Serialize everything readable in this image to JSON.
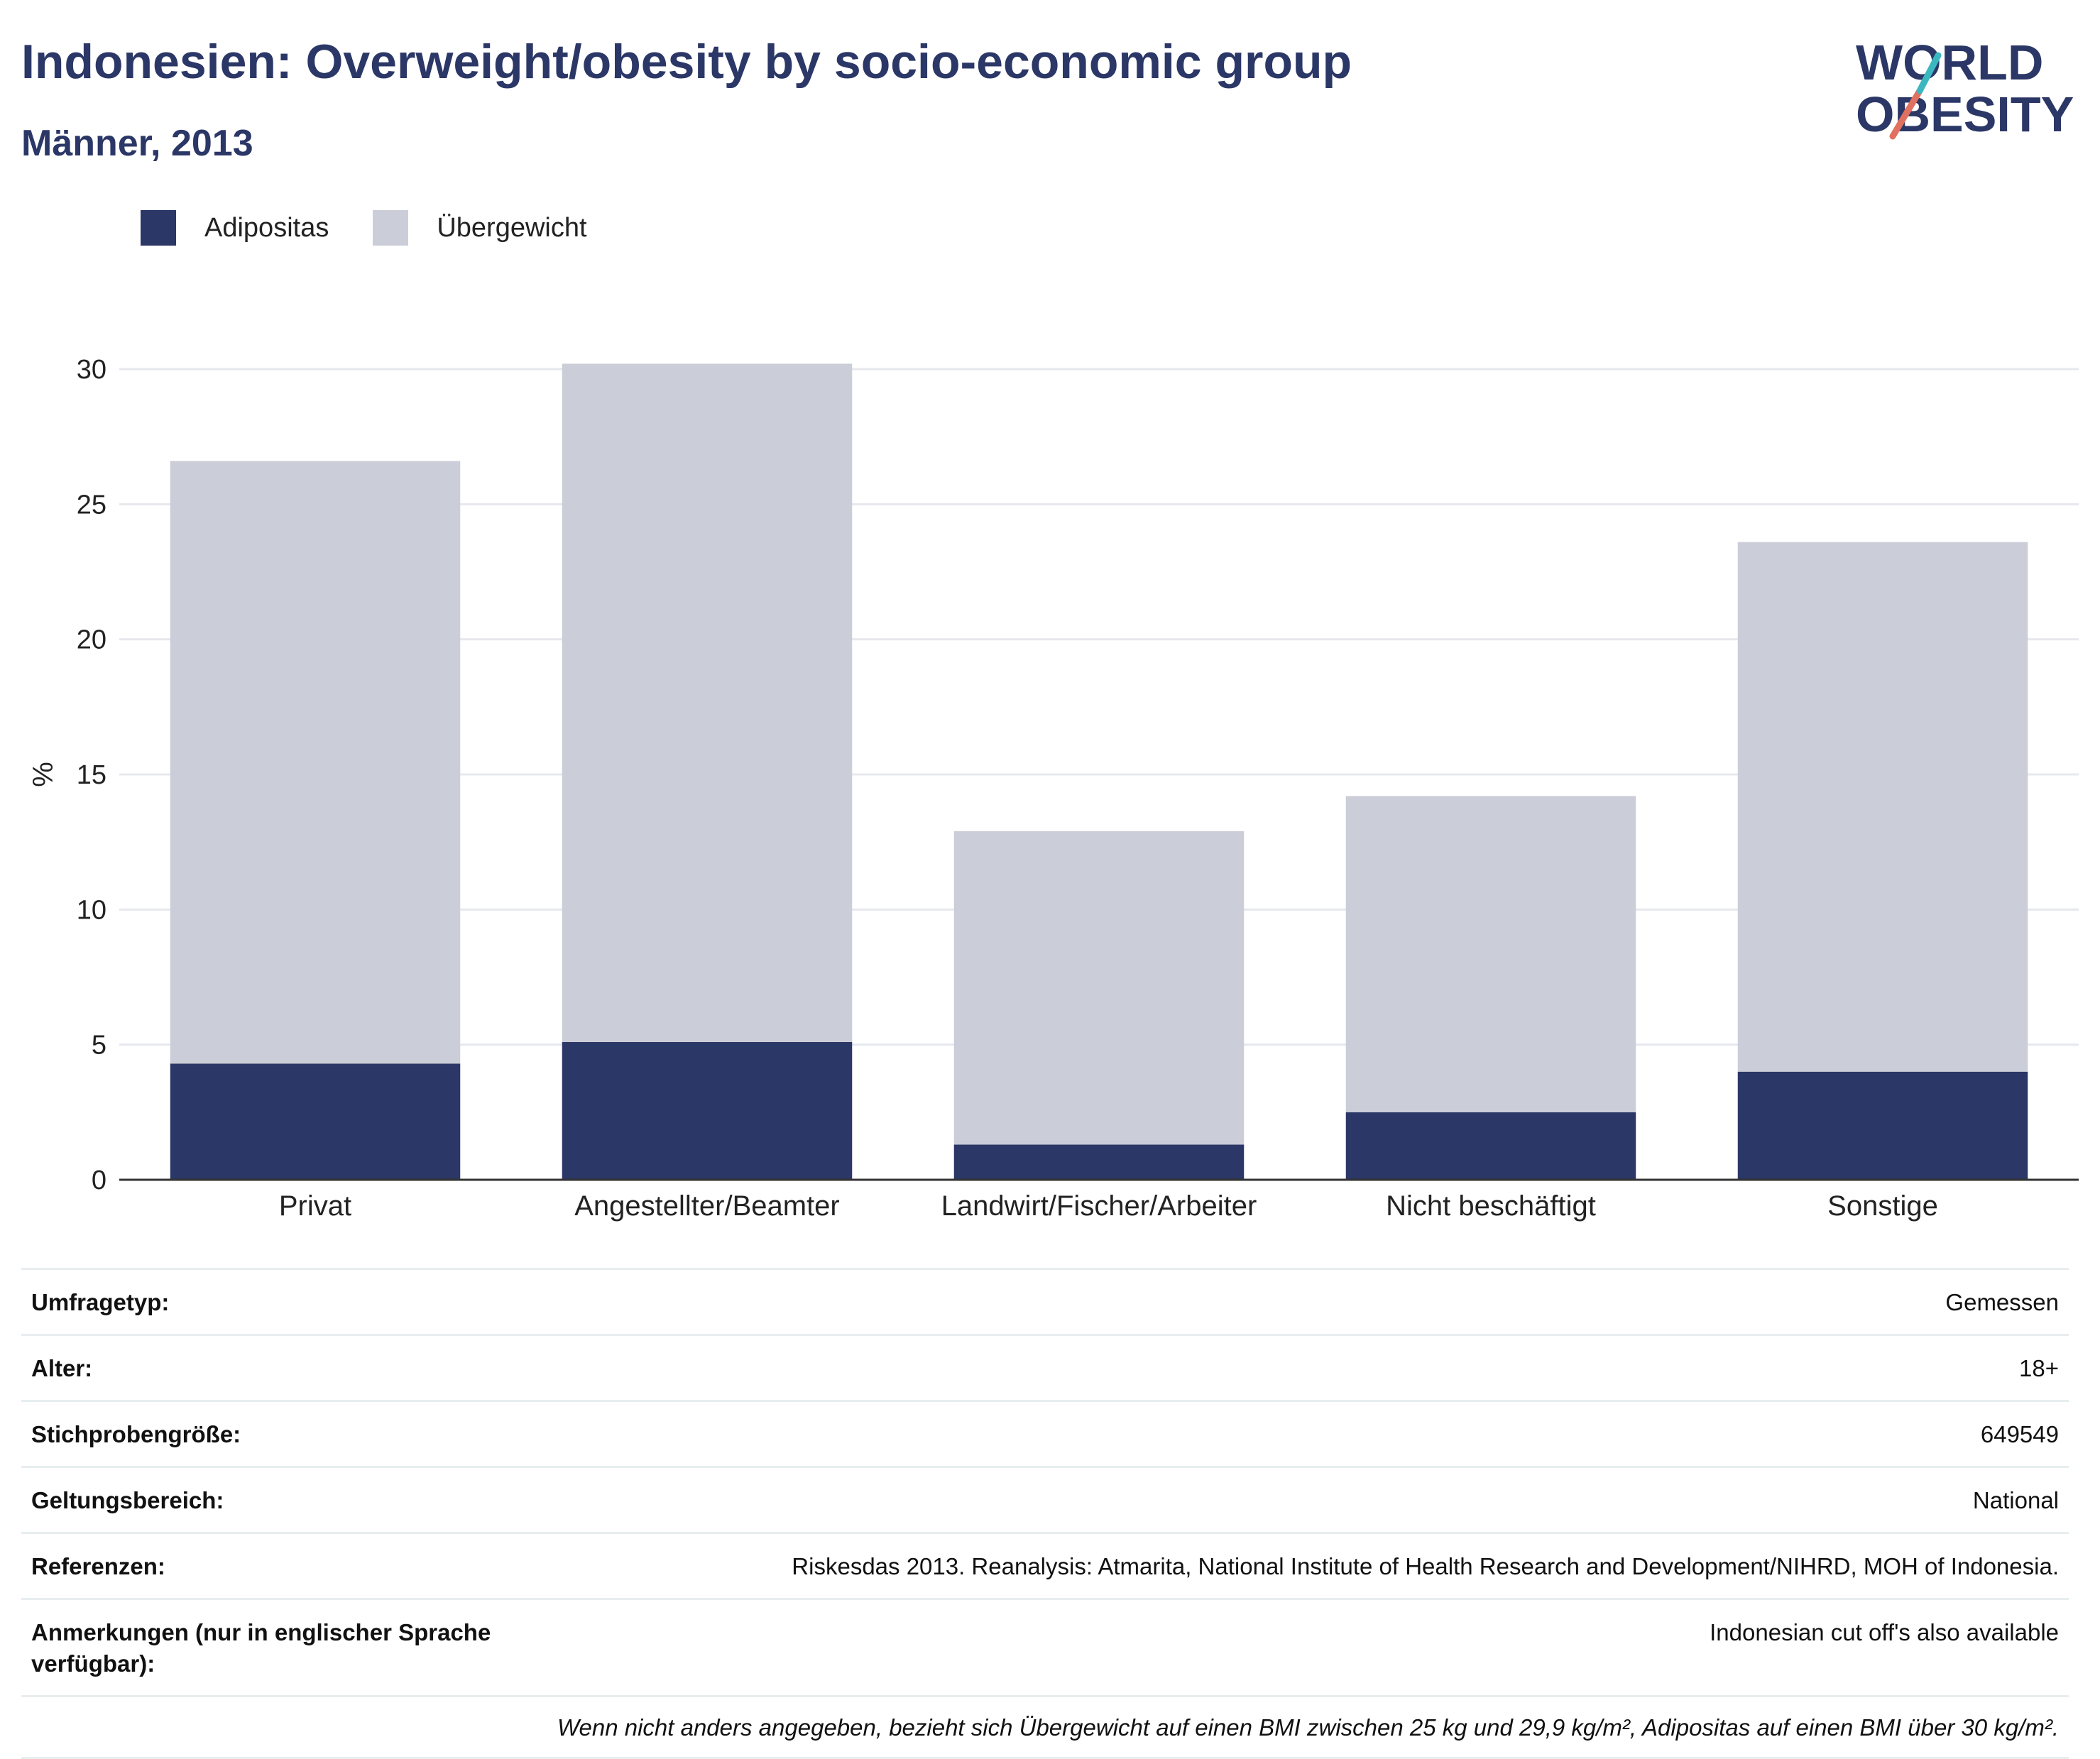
{
  "header": {
    "title": "Indonesien: Overweight/obesity by socio-economic group",
    "subtitle": "Männer, 2013"
  },
  "logo": {
    "line1": "WORLD",
    "line2": "OBESITY"
  },
  "colors": {
    "obesity": "#2b3766",
    "overweight": "#cbcdd8",
    "grid": "#e6e8ee",
    "axis": "#333333"
  },
  "chart_data": {
    "type": "bar",
    "stacked": true,
    "categories": [
      "Privat",
      "Angestellter/Beamter",
      "Landwirt/Fischer/Arbeiter",
      "Nicht beschäftigt",
      "Sonstige"
    ],
    "series": [
      {
        "name": "Adipositas",
        "values": [
          4.3,
          5.1,
          1.3,
          2.5,
          4.0
        ]
      },
      {
        "name": "Übergewicht",
        "values": [
          22.3,
          25.1,
          11.6,
          11.7,
          19.6
        ]
      }
    ],
    "totals": [
      26.6,
      30.2,
      12.9,
      14.2,
      23.6
    ],
    "ylabel": "%",
    "ylim": [
      0,
      30
    ],
    "yticks": [
      0,
      5,
      10,
      15,
      20,
      25,
      30
    ],
    "grid": true,
    "legend_position": "top-left"
  },
  "meta": {
    "rows": [
      {
        "key": "Umfragetyp:",
        "value": "Gemessen"
      },
      {
        "key": "Alter:",
        "value": "18+"
      },
      {
        "key": "Stichprobengröße:",
        "value": "649549"
      },
      {
        "key": "Geltungsbereich:",
        "value": "National"
      },
      {
        "key": "Referenzen:",
        "value": "Riskesdas 2013. Reanalysis: Atmarita, National Institute of Health Research and Development/NIHRD, MOH of Indonesia."
      },
      {
        "key": "Anmerkungen (nur in englischer Sprache verfügbar):",
        "value": "Indonesian cut off's also available"
      }
    ],
    "footnote": "Wenn nicht anders angegeben, bezieht sich Übergewicht auf einen BMI zwischen 25 kg und 29,9 kg/m², Adipositas auf einen BMI über 30 kg/m²."
  }
}
